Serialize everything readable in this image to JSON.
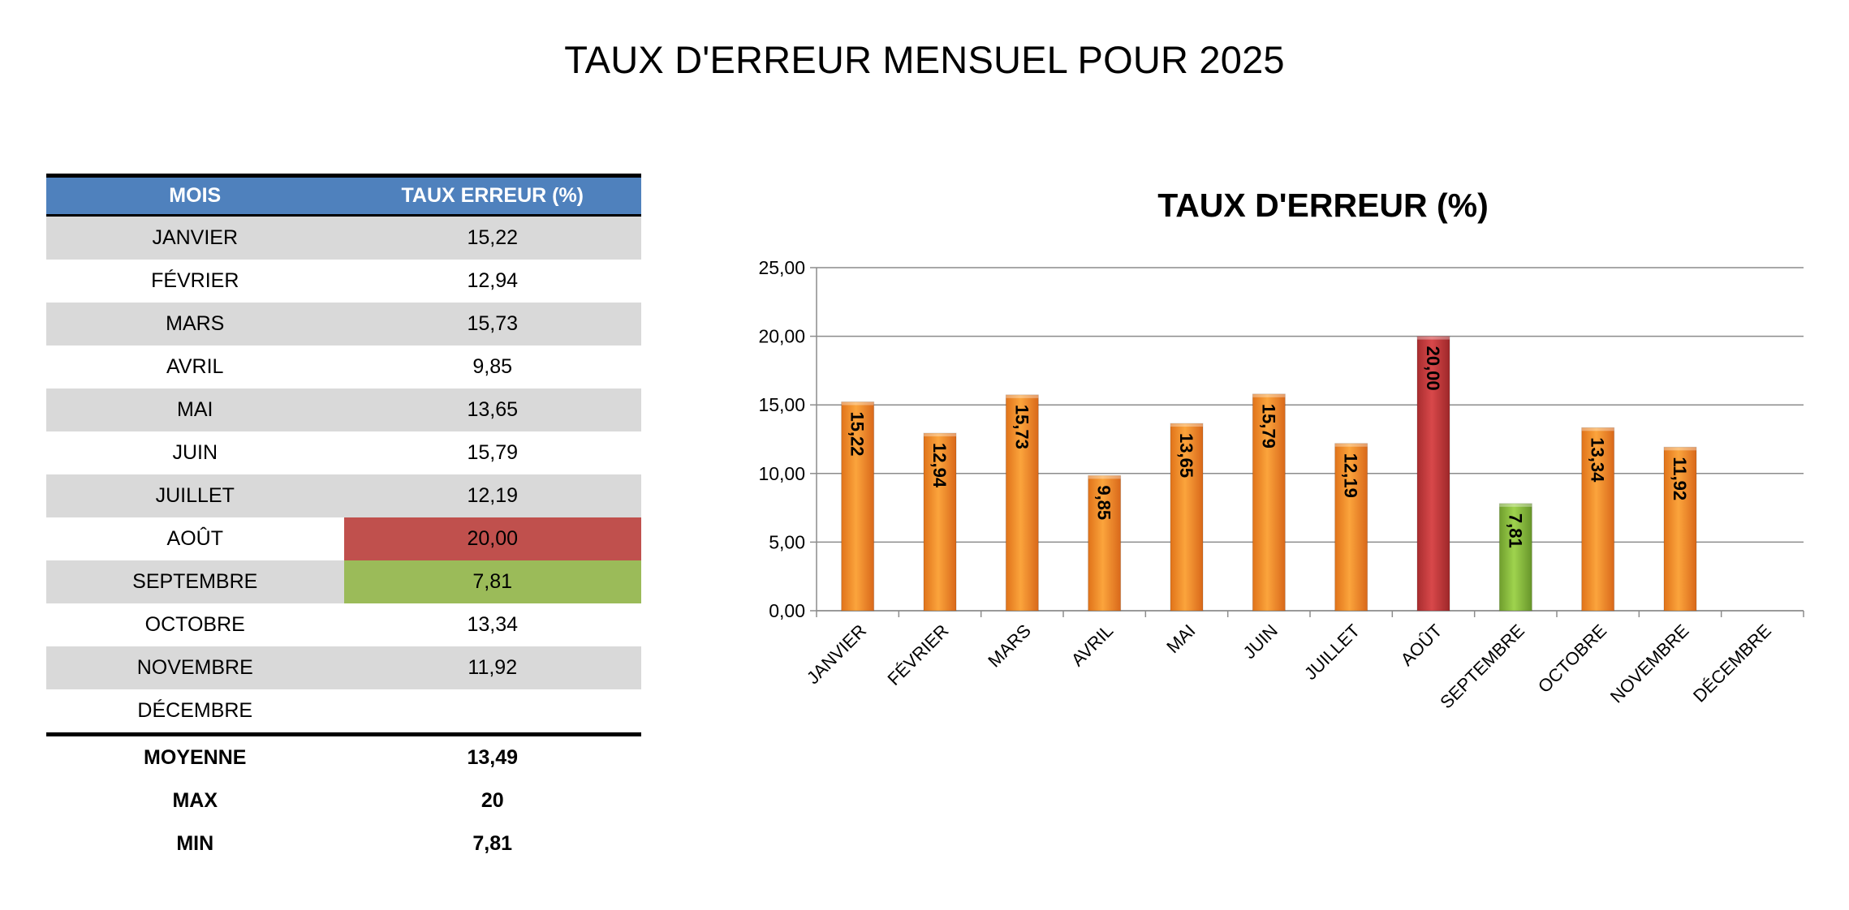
{
  "page": {
    "title": "TAUX D'ERREUR MENSUEL POUR 2025"
  },
  "table": {
    "headers": {
      "month": "MOIS",
      "rate": "TAUX ERREUR (%)"
    },
    "rows": [
      {
        "month": "JANVIER",
        "rate": "15,22"
      },
      {
        "month": "FÉVRIER",
        "rate": "12,94"
      },
      {
        "month": "MARS",
        "rate": "15,73"
      },
      {
        "month": "AVRIL",
        "rate": "9,85"
      },
      {
        "month": "MAI",
        "rate": "13,65"
      },
      {
        "month": "JUIN",
        "rate": "15,79"
      },
      {
        "month": "JUILLET",
        "rate": "12,19"
      },
      {
        "month": "AOÛT",
        "rate": "20,00"
      },
      {
        "month": "SEPTEMBRE",
        "rate": "7,81"
      },
      {
        "month": "OCTOBRE",
        "rate": "13,34"
      },
      {
        "month": "NOVEMBRE",
        "rate": "11,92"
      },
      {
        "month": "DÉCEMBRE",
        "rate": ""
      }
    ],
    "stats": [
      {
        "label": "MOYENNE",
        "value": "13,49"
      },
      {
        "label": "MAX",
        "value": "20"
      },
      {
        "label": "MIN",
        "value": "7,81"
      }
    ],
    "highlight_colors": {
      "max": "#c0504d",
      "min": "#9bbb59",
      "header": "#4f81bd",
      "stripe": "#d9d9d9"
    }
  },
  "chart_data": {
    "type": "bar",
    "title": "TAUX D'ERREUR (%)",
    "categories": [
      "JANVIER",
      "FÉVRIER",
      "MARS",
      "AVRIL",
      "MAI",
      "JUIN",
      "JUILLET",
      "AOÛT",
      "SEPTEMBRE",
      "OCTOBRE",
      "NOVEMBRE",
      "DÉCEMBRE"
    ],
    "values": [
      15.22,
      12.94,
      15.73,
      9.85,
      13.65,
      15.79,
      12.19,
      20.0,
      7.81,
      13.34,
      11.92,
      null
    ],
    "data_labels": [
      "15,22",
      "12,94",
      "15,73",
      "9,85",
      "13,65",
      "15,79",
      "12,19",
      "20,00",
      "7,81",
      "13,34",
      "11,92",
      ""
    ],
    "ylim": [
      0,
      25
    ],
    "yticks": [
      "0,00",
      "5,00",
      "10,00",
      "15,00",
      "20,00",
      "25,00"
    ],
    "grid": true,
    "legend": "none",
    "colors": {
      "default": "#f28e2b",
      "max": "#c0393b",
      "min": "#8cc63f"
    }
  }
}
